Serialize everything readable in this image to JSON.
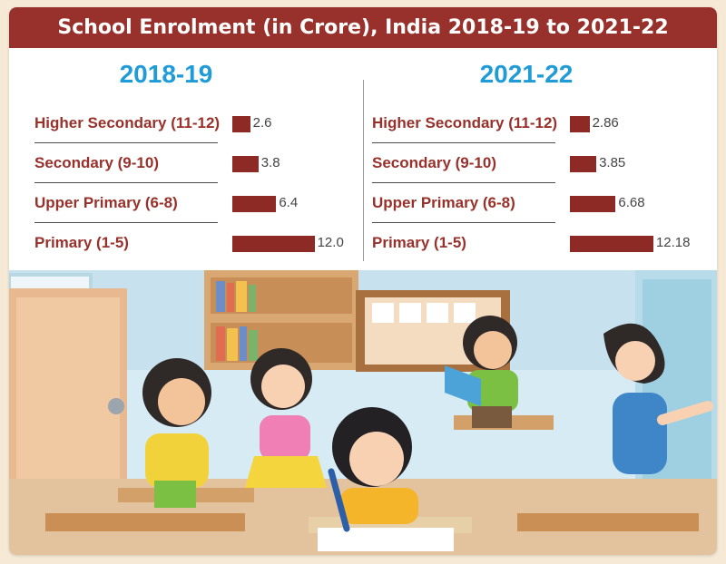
{
  "title": "School Enrolment (in Crore), India 2018-19 to 2021-22",
  "chart_data": [
    {
      "type": "bar",
      "title": "2018-19",
      "categories": [
        "Higher Secondary (11-12)",
        "Secondary (9-10)",
        "Upper Primary (6-8)",
        "Primary (1-5)"
      ],
      "values": [
        2.6,
        3.8,
        6.4,
        12.0
      ],
      "value_labels": [
        "2.6",
        "3.8",
        "6.4",
        "12.0"
      ],
      "orientation": "horizontal",
      "color": "#8e2a25"
    },
    {
      "type": "bar",
      "title": "2021-22",
      "categories": [
        "Higher Secondary (11-12)",
        "Secondary (9-10)",
        "Upper Primary (6-8)",
        "Primary (1-5)"
      ],
      "values": [
        2.86,
        3.85,
        6.68,
        12.18
      ],
      "value_labels": [
        "2.86",
        "3.85",
        "6.68",
        "12.18"
      ],
      "orientation": "horizontal",
      "color": "#8e2a25"
    }
  ],
  "colors": {
    "title_bar": "#98312b",
    "year_title": "#1f9bd7",
    "category_label": "#98312b",
    "bar": "#8e2a25"
  }
}
